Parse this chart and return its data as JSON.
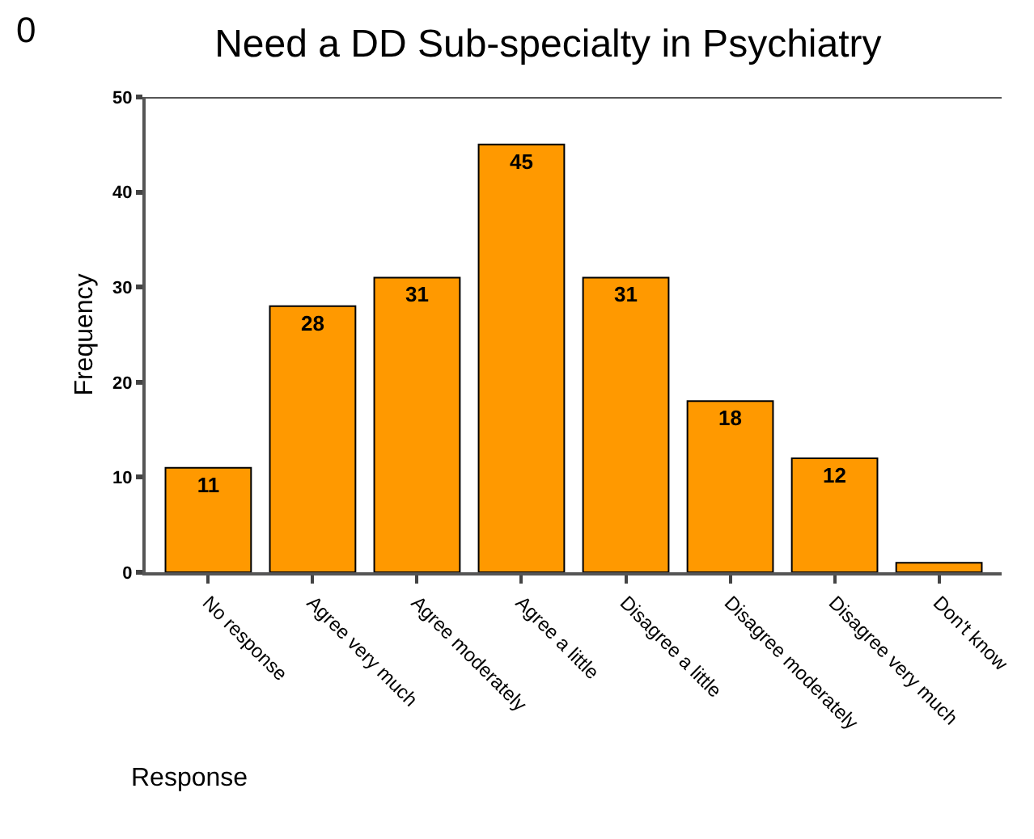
{
  "chart_data": {
    "type": "bar",
    "title": "Need a DD Sub-specialty in Psychiatry",
    "xlabel": "Response",
    "ylabel": "Frequency",
    "categories": [
      "No response",
      "Agree very much",
      "Agree moderately",
      "Agree a little",
      "Disagree a little",
      "Disagree moderately",
      "Disagree very much",
      "Don't know"
    ],
    "values": [
      11,
      28,
      31,
      45,
      31,
      18,
      12,
      1
    ],
    "value_labels": [
      "11",
      "28",
      "31",
      "45",
      "31",
      "18",
      "12",
      null
    ],
    "color": "#ff9900",
    "ylim": [
      0,
      50
    ],
    "yticks": [
      0,
      10,
      20,
      30,
      40,
      50
    ],
    "grid": false,
    "legend": false,
    "annotations": [
      "0"
    ]
  }
}
